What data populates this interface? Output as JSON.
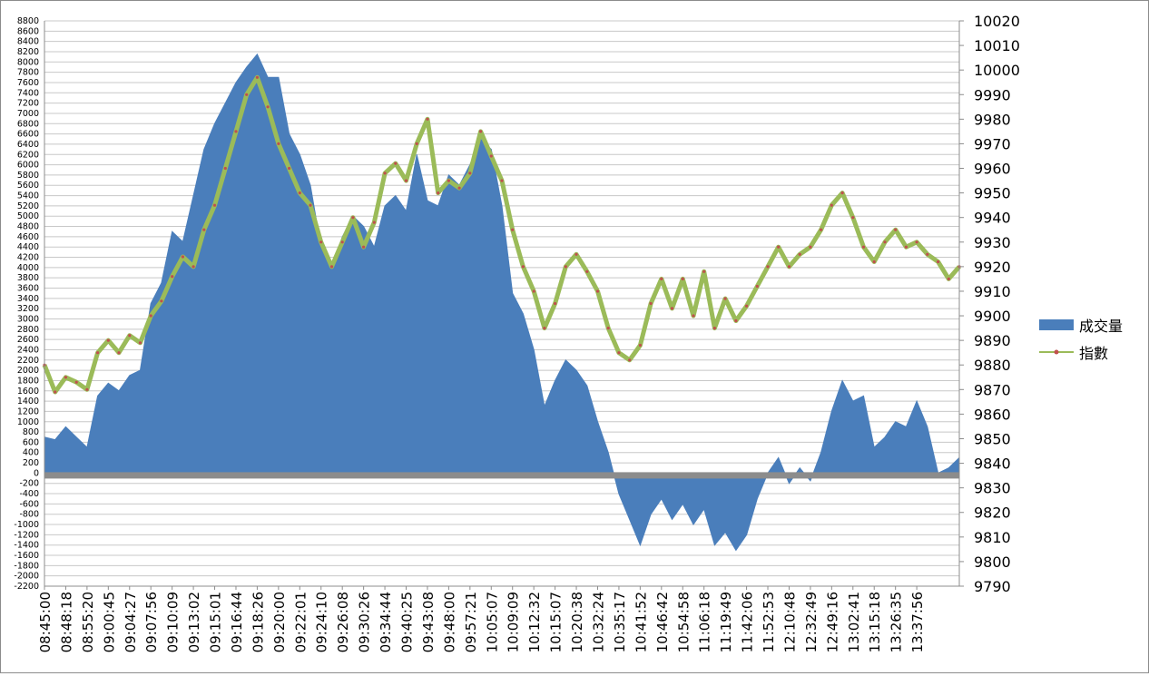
{
  "chart_data": {
    "type": "area",
    "title": "",
    "x_labels": [
      "08:45:00",
      "08:48:18",
      "08:55:20",
      "09:00:45",
      "09:04:27",
      "09:07:56",
      "09:10:09",
      "09:13:02",
      "09:15:01",
      "09:16:44",
      "09:18:26",
      "09:20:00",
      "09:22:01",
      "09:24:10",
      "09:26:08",
      "09:30:26",
      "09:34:44",
      "09:40:25",
      "09:43:08",
      "09:48:00",
      "09:57:21",
      "10:05:07",
      "10:09:09",
      "10:12:32",
      "10:15:07",
      "10:20:38",
      "10:32:24",
      "10:35:17",
      "10:41:52",
      "10:46:42",
      "10:54:58",
      "11:06:18",
      "11:19:49",
      "11:42:06",
      "11:52:53",
      "12:10:48",
      "12:32:49",
      "12:49:16",
      "13:02:41",
      "13:15:18",
      "13:26:35",
      "13:37:56"
    ],
    "y_left": {
      "min": -2200,
      "max": 8800,
      "step": 200
    },
    "y_right": {
      "min": 9790,
      "max": 10020,
      "step": 10
    },
    "series": [
      {
        "name": "成交量",
        "kind": "area",
        "axis": "left",
        "color": "#4a7ebb",
        "points": [
          [
            0,
            700
          ],
          [
            0.5,
            650
          ],
          [
            1,
            900
          ],
          [
            1.5,
            700
          ],
          [
            2,
            500
          ],
          [
            2.5,
            1500
          ],
          [
            3,
            1750
          ],
          [
            3.5,
            1600
          ],
          [
            4,
            1900
          ],
          [
            4.5,
            2000
          ],
          [
            5,
            3300
          ],
          [
            5.5,
            3700
          ],
          [
            6,
            4700
          ],
          [
            6.5,
            4500
          ],
          [
            7,
            5400
          ],
          [
            7.5,
            6300
          ],
          [
            8,
            6800
          ],
          [
            8.5,
            7200
          ],
          [
            9,
            7600
          ],
          [
            9.5,
            7900
          ],
          [
            10,
            8150
          ],
          [
            10.5,
            7700
          ],
          [
            11,
            7700
          ],
          [
            11.5,
            6600
          ],
          [
            12,
            6200
          ],
          [
            12.5,
            5600
          ],
          [
            13,
            4400
          ],
          [
            13.5,
            4000
          ],
          [
            14,
            4600
          ],
          [
            14.5,
            5000
          ],
          [
            15,
            4800
          ],
          [
            15.5,
            4400
          ],
          [
            16,
            5200
          ],
          [
            16.5,
            5400
          ],
          [
            17,
            5100
          ],
          [
            17.5,
            6200
          ],
          [
            18,
            5300
          ],
          [
            18.5,
            5200
          ],
          [
            19,
            5800
          ],
          [
            19.5,
            5600
          ],
          [
            20,
            6000
          ],
          [
            20.5,
            6500
          ],
          [
            21,
            6300
          ],
          [
            21.5,
            5200
          ],
          [
            22,
            3500
          ],
          [
            22.5,
            3100
          ],
          [
            23,
            2400
          ],
          [
            23.5,
            1300
          ],
          [
            24,
            1800
          ],
          [
            24.5,
            2200
          ],
          [
            25,
            2000
          ],
          [
            25.5,
            1700
          ],
          [
            26,
            1000
          ],
          [
            26.5,
            400
          ],
          [
            27,
            -400
          ],
          [
            27.5,
            -900
          ],
          [
            28,
            -1400
          ],
          [
            28.5,
            -800
          ],
          [
            29,
            -500
          ],
          [
            29.5,
            -900
          ],
          [
            30,
            -600
          ],
          [
            30.5,
            -1000
          ],
          [
            31,
            -700
          ],
          [
            31.5,
            -1400
          ],
          [
            32,
            -1150
          ],
          [
            32.5,
            -1500
          ],
          [
            33,
            -1200
          ],
          [
            33.5,
            -500
          ],
          [
            34,
            0
          ],
          [
            34.5,
            300
          ],
          [
            35,
            -200
          ],
          [
            35.5,
            100
          ],
          [
            36,
            -150
          ],
          [
            36.5,
            400
          ],
          [
            37,
            1200
          ],
          [
            37.5,
            1800
          ],
          [
            38,
            1400
          ],
          [
            38.5,
            1500
          ],
          [
            39,
            500
          ],
          [
            39.5,
            700
          ],
          [
            40,
            1000
          ],
          [
            40.5,
            900
          ],
          [
            41,
            1400
          ],
          [
            41.5,
            900
          ],
          [
            42,
            0
          ],
          [
            42.5,
            100
          ],
          [
            43,
            300
          ]
        ]
      },
      {
        "name": "指數",
        "kind": "line",
        "axis": "right",
        "color": "#9bbb59",
        "marker_color": "#c0504d",
        "points": [
          [
            0,
            9880
          ],
          [
            0.5,
            9869
          ],
          [
            1,
            9875
          ],
          [
            1.5,
            9873
          ],
          [
            2,
            9870
          ],
          [
            2.5,
            9885
          ],
          [
            3,
            9890
          ],
          [
            3.5,
            9885
          ],
          [
            4,
            9892
          ],
          [
            4.5,
            9889
          ],
          [
            5,
            9900
          ],
          [
            5.5,
            9906
          ],
          [
            6,
            9916
          ],
          [
            6.5,
            9924
          ],
          [
            7,
            9920
          ],
          [
            7.5,
            9935
          ],
          [
            8,
            9945
          ],
          [
            8.5,
            9960
          ],
          [
            9,
            9975
          ],
          [
            9.5,
            9990
          ],
          [
            10,
            9997
          ],
          [
            10.5,
            9985
          ],
          [
            11,
            9970
          ],
          [
            11.5,
            9960
          ],
          [
            12,
            9950
          ],
          [
            12.5,
            9945
          ],
          [
            13,
            9930
          ],
          [
            13.5,
            9920
          ],
          [
            14,
            9930
          ],
          [
            14.5,
            9940
          ],
          [
            15,
            9928
          ],
          [
            15.5,
            9938
          ],
          [
            16,
            9958
          ],
          [
            16.5,
            9962
          ],
          [
            17,
            9955
          ],
          [
            17.5,
            9970
          ],
          [
            18,
            9980
          ],
          [
            18.5,
            9950
          ],
          [
            19,
            9955
          ],
          [
            19.5,
            9952
          ],
          [
            20,
            9958
          ],
          [
            20.5,
            9975
          ],
          [
            21,
            9965
          ],
          [
            21.5,
            9955
          ],
          [
            22,
            9935
          ],
          [
            22.5,
            9920
          ],
          [
            23,
            9910
          ],
          [
            23.5,
            9895
          ],
          [
            24,
            9905
          ],
          [
            24.5,
            9920
          ],
          [
            25,
            9925
          ],
          [
            25.5,
            9918
          ],
          [
            26,
            9910
          ],
          [
            26.5,
            9895
          ],
          [
            27,
            9885
          ],
          [
            27.5,
            9882
          ],
          [
            28,
            9888
          ],
          [
            28.5,
            9905
          ],
          [
            29,
            9915
          ],
          [
            29.5,
            9903
          ],
          [
            30,
            9915
          ],
          [
            30.5,
            9900
          ],
          [
            31,
            9918
          ],
          [
            31.5,
            9895
          ],
          [
            32,
            9907
          ],
          [
            32.5,
            9898
          ],
          [
            33,
            9904
          ],
          [
            33.5,
            9912
          ],
          [
            34,
            9920
          ],
          [
            34.5,
            9928
          ],
          [
            35,
            9920
          ],
          [
            35.5,
            9925
          ],
          [
            36,
            9928
          ],
          [
            36.5,
            9935
          ],
          [
            37,
            9945
          ],
          [
            37.5,
            9950
          ],
          [
            38,
            9940
          ],
          [
            38.5,
            9928
          ],
          [
            39,
            9922
          ],
          [
            39.5,
            9930
          ],
          [
            40,
            9935
          ],
          [
            40.5,
            9928
          ],
          [
            41,
            9930
          ],
          [
            41.5,
            9925
          ],
          [
            42,
            9922
          ],
          [
            42.5,
            9915
          ],
          [
            43,
            9920
          ]
        ]
      }
    ],
    "legend_position": "right",
    "grid": true
  }
}
